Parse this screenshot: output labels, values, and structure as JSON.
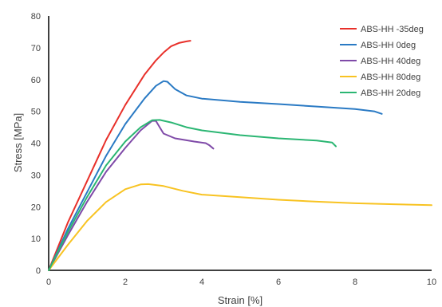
{
  "chart_data": {
    "type": "line",
    "xlabel": "Strain [%]",
    "ylabel": "Stress [MPa]",
    "xlim": [
      0,
      10
    ],
    "ylim": [
      0,
      80
    ],
    "xticks": [
      "0",
      "2",
      "4",
      "6",
      "8",
      "10"
    ],
    "yticks": [
      "0",
      "10",
      "20",
      "30",
      "40",
      "50",
      "60",
      "70",
      "80"
    ],
    "grid": false,
    "legend_position": "top-right",
    "series": [
      {
        "name": "ABS-HH -35deg",
        "color": "#e8302a",
        "points": [
          [
            0,
            0
          ],
          [
            0.5,
            15
          ],
          [
            1,
            28
          ],
          [
            1.5,
            41
          ],
          [
            2,
            52
          ],
          [
            2.5,
            61.5
          ],
          [
            2.8,
            66
          ],
          [
            3.0,
            68.5
          ],
          [
            3.2,
            70.5
          ],
          [
            3.4,
            71.5
          ],
          [
            3.6,
            72
          ],
          [
            3.7,
            72.2
          ]
        ]
      },
      {
        "name": "ABS-HH 0deg",
        "color": "#2a7ac4",
        "points": [
          [
            0,
            0
          ],
          [
            0.5,
            13
          ],
          [
            1,
            24.5
          ],
          [
            1.5,
            36
          ],
          [
            2,
            46
          ],
          [
            2.5,
            54
          ],
          [
            2.8,
            58
          ],
          [
            3.0,
            59.5
          ],
          [
            3.1,
            59.3
          ],
          [
            3.3,
            57
          ],
          [
            3.6,
            55
          ],
          [
            4,
            54
          ],
          [
            5,
            53
          ],
          [
            6,
            52.3
          ],
          [
            7,
            51.5
          ],
          [
            8,
            50.7
          ],
          [
            8.5,
            50
          ],
          [
            8.7,
            49.2
          ]
        ]
      },
      {
        "name": "ABS-HH 40deg",
        "color": "#7f4aa8",
        "points": [
          [
            0,
            0
          ],
          [
            0.5,
            11
          ],
          [
            1,
            21.5
          ],
          [
            1.5,
            31
          ],
          [
            2,
            38.5
          ],
          [
            2.4,
            44
          ],
          [
            2.7,
            47
          ],
          [
            2.8,
            47
          ],
          [
            2.9,
            45
          ],
          [
            3.0,
            43
          ],
          [
            3.3,
            41.5
          ],
          [
            3.8,
            40.5
          ],
          [
            4.1,
            40
          ],
          [
            4.2,
            39.3
          ],
          [
            4.3,
            38.3
          ]
        ]
      },
      {
        "name": "ABS-HH 80deg",
        "color": "#f8c322",
        "points": [
          [
            0,
            0
          ],
          [
            0.5,
            8
          ],
          [
            1,
            15.5
          ],
          [
            1.5,
            21.5
          ],
          [
            2,
            25.5
          ],
          [
            2.4,
            27
          ],
          [
            2.6,
            27.1
          ],
          [
            3,
            26.5
          ],
          [
            3.5,
            25
          ],
          [
            4,
            23.8
          ],
          [
            5,
            23
          ],
          [
            6,
            22.2
          ],
          [
            7,
            21.6
          ],
          [
            8,
            21.1
          ],
          [
            9,
            20.8
          ],
          [
            10,
            20.5
          ]
        ]
      },
      {
        "name": "ABS-HH 20deg",
        "color": "#2bb673",
        "points": [
          [
            0,
            0
          ],
          [
            0.5,
            12
          ],
          [
            1,
            23
          ],
          [
            1.5,
            33
          ],
          [
            2,
            40.5
          ],
          [
            2.4,
            45
          ],
          [
            2.7,
            47.2
          ],
          [
            2.9,
            47.3
          ],
          [
            3.2,
            46.5
          ],
          [
            3.6,
            45
          ],
          [
            4,
            44
          ],
          [
            5,
            42.5
          ],
          [
            6,
            41.5
          ],
          [
            7,
            40.8
          ],
          [
            7.4,
            40.2
          ],
          [
            7.5,
            39
          ]
        ]
      }
    ]
  }
}
